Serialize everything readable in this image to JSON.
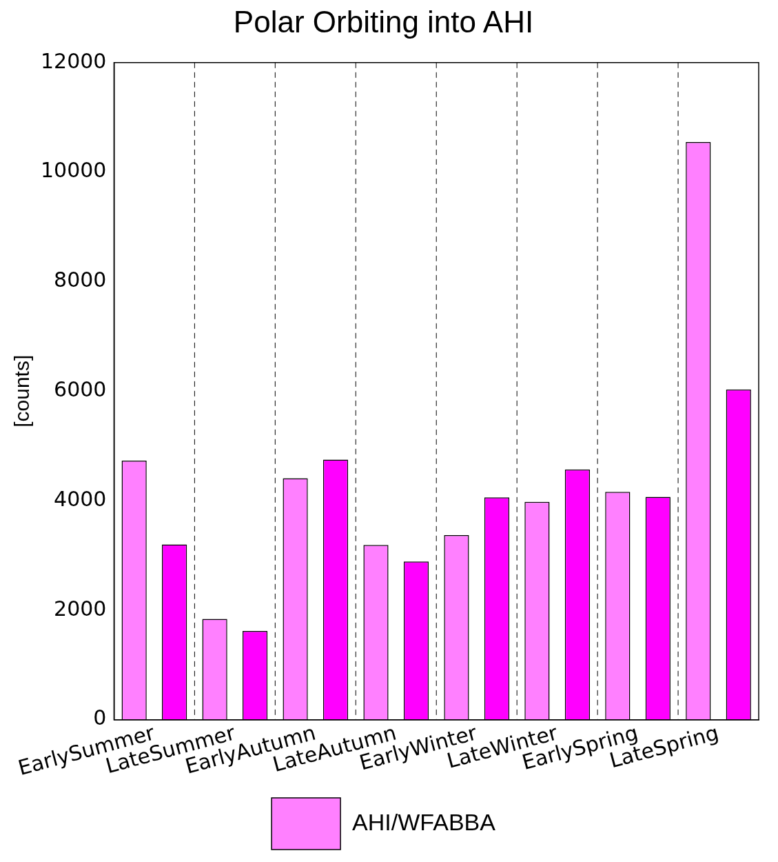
{
  "chart_data": {
    "type": "bar",
    "title": "Polar Orbiting into AHI",
    "ylabel": "[counts]",
    "categories": [
      "EarlySummer",
      "LateSummer",
      "EarlyAutumn",
      "LateAutumn",
      "EarlyWinter",
      "LateWinter",
      "EarlySpring",
      "LateSpring"
    ],
    "series": [
      {
        "name": "AHI/WFABBA",
        "color": "#ff80ff",
        "values": [
          4730,
          1840,
          4410,
          3190,
          3370,
          3980,
          4160,
          10550
        ]
      },
      {
        "color": "#ff00ff",
        "values": [
          3200,
          1620,
          4750,
          2890,
          4060,
          4570,
          4070,
          6030
        ]
      }
    ],
    "ylim": [
      0,
      12000
    ],
    "yticks": [
      0,
      2000,
      4000,
      6000,
      8000,
      10000,
      12000
    ],
    "grid": "x",
    "legend": "bottom"
  }
}
